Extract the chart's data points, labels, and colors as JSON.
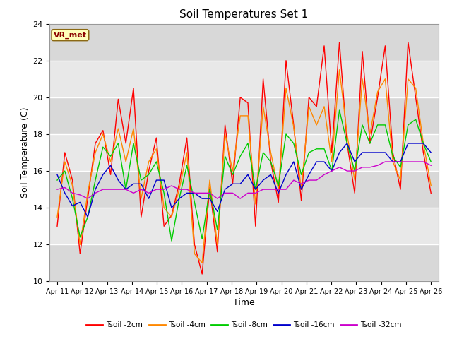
{
  "title": "Soil Temperatures Set 1",
  "xlabel": "Time",
  "ylabel": "Soil Temperature (C)",
  "ylim": [
    10,
    24
  ],
  "yticks": [
    10,
    12,
    14,
    16,
    18,
    20,
    22,
    24
  ],
  "annotation": "VR_met",
  "fig_facecolor": "#ffffff",
  "plot_facecolor": "#e8e8e8",
  "band_color_light": "#e8e8e8",
  "band_color_dark": "#d0d0d0",
  "colors": {
    "Tsoil -2cm": "#ff0000",
    "Tsoil -4cm": "#ff8800",
    "Tsoil -8cm": "#00cc00",
    "Tsoil -16cm": "#0000cc",
    "Tsoil -32cm": "#cc00cc"
  },
  "xticklabels": [
    "Apr 11",
    "Apr 12",
    "Apr 13",
    "Apr 14",
    "Apr 15",
    "Apr 16",
    "Apr 17",
    "Apr 18",
    "Apr 19",
    "Apr 20",
    "Apr 21",
    "Apr 22",
    "Apr 23",
    "Apr 24",
    "Apr 25",
    "Apr 26"
  ],
  "t2cm": [
    13.0,
    17.0,
    15.5,
    11.5,
    14.5,
    17.5,
    18.2,
    15.8,
    19.9,
    17.5,
    20.5,
    13.5,
    16.0,
    17.8,
    13.0,
    13.6,
    15.3,
    17.8,
    12.0,
    10.4,
    15.1,
    11.6,
    18.5,
    15.3,
    20.0,
    19.7,
    13.0,
    21.0,
    16.5,
    14.3,
    22.0,
    18.5,
    14.4,
    20.0,
    19.5,
    22.8,
    17.0,
    23.0,
    17.5,
    14.8,
    22.5,
    17.5,
    20.0,
    22.8,
    17.0,
    15.0,
    23.0,
    20.0,
    17.0,
    14.8
  ],
  "t4cm": [
    13.5,
    16.5,
    15.2,
    12.0,
    14.8,
    17.0,
    18.0,
    16.5,
    18.3,
    16.5,
    18.3,
    14.5,
    16.5,
    17.2,
    14.0,
    13.5,
    15.0,
    17.0,
    11.5,
    11.0,
    15.5,
    12.0,
    18.0,
    16.0,
    19.0,
    19.0,
    14.2,
    19.5,
    17.0,
    15.0,
    20.5,
    18.4,
    15.0,
    19.5,
    18.5,
    19.5,
    16.5,
    21.5,
    18.0,
    15.5,
    21.0,
    18.0,
    20.3,
    21.0,
    16.5,
    15.5,
    21.0,
    20.5,
    17.5,
    15.2
  ],
  "t8cm": [
    15.5,
    16.0,
    14.5,
    12.4,
    13.5,
    15.5,
    17.3,
    16.8,
    17.5,
    15.0,
    17.5,
    15.5,
    15.8,
    16.5,
    14.8,
    12.2,
    14.5,
    16.3,
    14.3,
    12.3,
    15.0,
    12.8,
    16.8,
    15.8,
    16.8,
    17.5,
    15.0,
    17.0,
    16.5,
    15.2,
    18.0,
    17.5,
    15.8,
    17.0,
    17.2,
    17.2,
    16.0,
    19.3,
    17.5,
    16.0,
    18.5,
    17.5,
    18.5,
    18.5,
    16.8,
    16.2,
    18.5,
    18.8,
    17.5,
    16.5
  ],
  "t16cm": [
    15.8,
    14.8,
    14.1,
    14.3,
    13.5,
    15.0,
    15.8,
    16.3,
    15.5,
    15.0,
    15.3,
    15.3,
    14.5,
    15.5,
    15.5,
    14.0,
    14.5,
    14.8,
    14.8,
    14.5,
    14.5,
    13.8,
    15.0,
    15.3,
    15.3,
    15.8,
    15.0,
    15.5,
    15.8,
    14.8,
    15.8,
    16.5,
    15.0,
    15.8,
    16.5,
    16.5,
    16.0,
    17.0,
    17.5,
    16.5,
    17.0,
    17.0,
    17.0,
    17.0,
    16.5,
    16.5,
    17.5,
    17.5,
    17.5,
    17.0
  ],
  "t32cm": [
    15.0,
    15.1,
    14.8,
    14.7,
    14.5,
    14.8,
    15.0,
    15.0,
    15.0,
    15.0,
    14.8,
    15.0,
    14.8,
    15.0,
    15.0,
    15.2,
    15.0,
    15.0,
    14.8,
    14.8,
    14.8,
    14.5,
    14.8,
    14.8,
    14.5,
    14.8,
    14.8,
    15.0,
    15.0,
    15.0,
    15.0,
    15.5,
    15.3,
    15.5,
    15.5,
    15.8,
    16.0,
    16.2,
    16.0,
    16.0,
    16.2,
    16.2,
    16.3,
    16.5,
    16.5,
    16.5,
    16.5,
    16.5,
    16.5,
    16.3
  ]
}
